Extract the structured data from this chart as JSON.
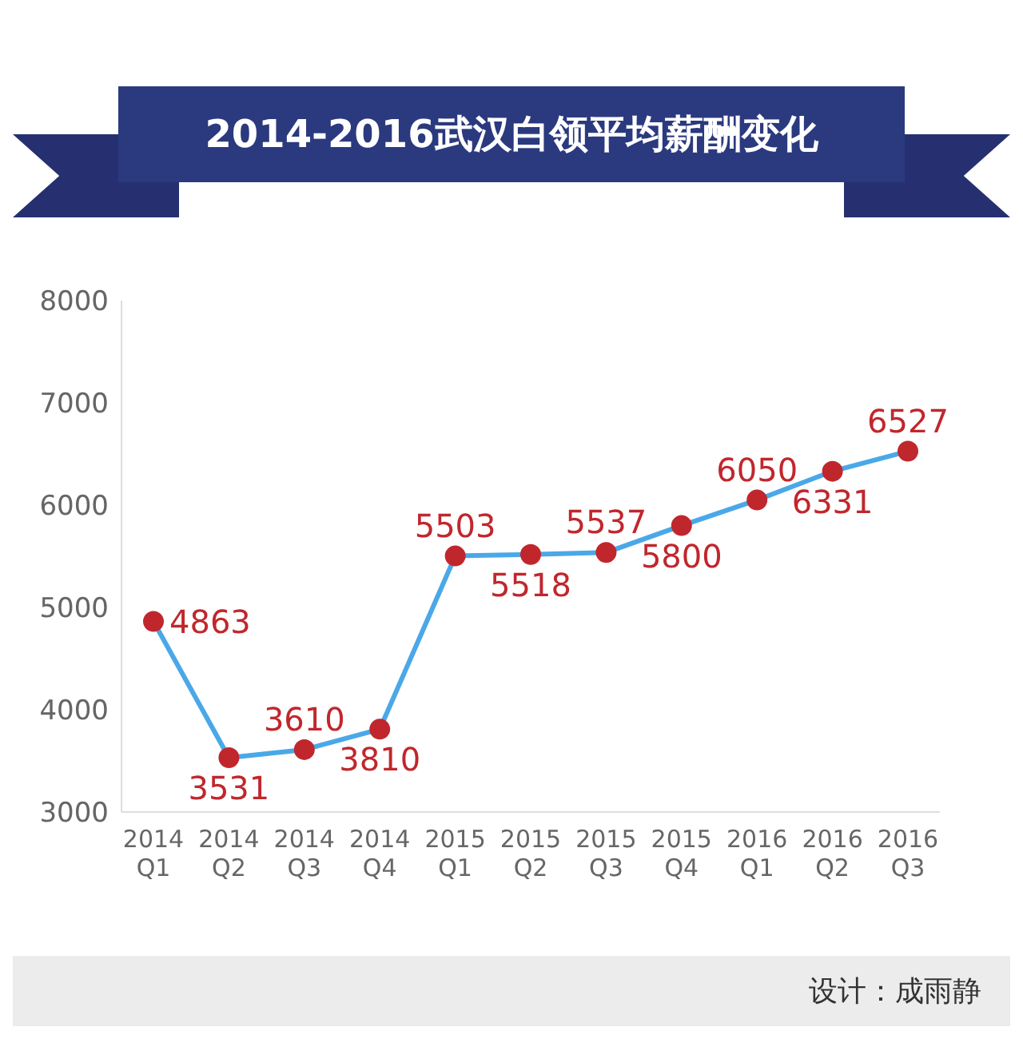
{
  "chart_data": {
    "type": "line",
    "title": "2014-2016武汉白领平均薪酬变化",
    "categories": [
      "2014 Q1",
      "2014 Q2",
      "2014 Q3",
      "2014 Q4",
      "2015 Q1",
      "2015 Q2",
      "2015 Q3",
      "2015 Q4",
      "2016 Q1",
      "2016 Q2",
      "2016 Q3"
    ],
    "series": [
      {
        "color": "#4aa8e8",
        "values": [
          4863,
          3531,
          3610,
          3810,
          5503,
          5518,
          5537,
          5800,
          6050,
          6331,
          6527
        ]
      }
    ],
    "ylim": [
      3000,
      8000
    ],
    "yticks": [
      3000,
      4000,
      5000,
      6000,
      7000,
      8000
    ],
    "data_labels": true,
    "marker": "circle",
    "grid": false,
    "legend": false,
    "annotations": [
      "设计：成雨静"
    ]
  }
}
